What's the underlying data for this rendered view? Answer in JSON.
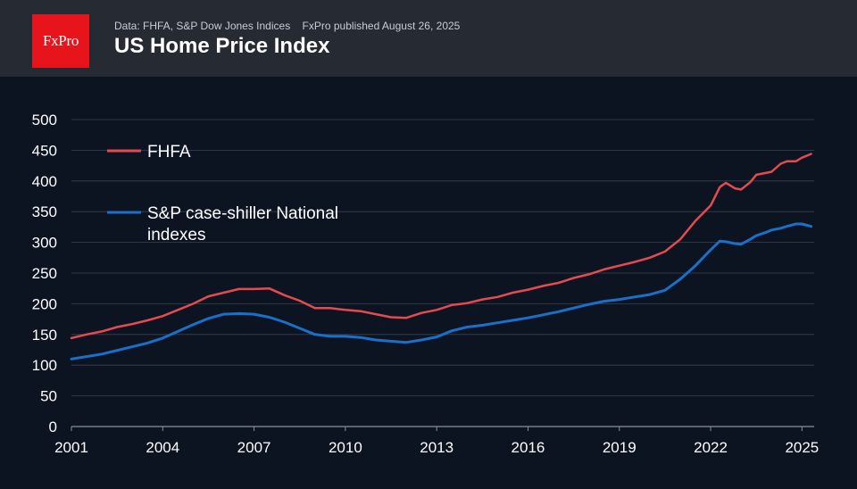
{
  "header": {
    "logo_text": "FxPro",
    "source": "Data: FHFA, S&P Dow Jones Indices",
    "published": "FxPro published August 26, 2025",
    "title": "US Home Price Index"
  },
  "colors": {
    "background": "#0c1421",
    "header": "#262a33",
    "logo": "#e8141c",
    "fhfa": "#e54a50",
    "sp": "#1a6fc9",
    "grid": "#3a4150"
  },
  "chart_data": {
    "type": "line",
    "title": "US Home Price Index",
    "xlabel": "",
    "ylabel": "",
    "xlim": [
      2001,
      2025.4
    ],
    "ylim": [
      0,
      500
    ],
    "y_ticks": [
      0,
      50,
      100,
      150,
      200,
      250,
      300,
      350,
      400,
      450,
      500
    ],
    "x_ticks": [
      2001,
      2004,
      2007,
      2010,
      2013,
      2016,
      2019,
      2022,
      2025
    ],
    "grid": true,
    "legend_position": "top-left",
    "series": [
      {
        "name": "FHFA",
        "color": "#e54a50",
        "points": [
          [
            2001.0,
            144
          ],
          [
            2001.5,
            150
          ],
          [
            2002.0,
            155
          ],
          [
            2002.5,
            162
          ],
          [
            2003.0,
            167
          ],
          [
            2003.5,
            173
          ],
          [
            2004.0,
            180
          ],
          [
            2004.5,
            190
          ],
          [
            2005.0,
            200
          ],
          [
            2005.5,
            212
          ],
          [
            2006.0,
            218
          ],
          [
            2006.5,
            224
          ],
          [
            2007.0,
            224
          ],
          [
            2007.5,
            225
          ],
          [
            2008.0,
            214
          ],
          [
            2008.5,
            205
          ],
          [
            2009.0,
            193
          ],
          [
            2009.5,
            193
          ],
          [
            2010.0,
            190
          ],
          [
            2010.5,
            188
          ],
          [
            2011.0,
            183
          ],
          [
            2011.5,
            178
          ],
          [
            2012.0,
            177
          ],
          [
            2012.5,
            185
          ],
          [
            2013.0,
            190
          ],
          [
            2013.5,
            198
          ],
          [
            2014.0,
            201
          ],
          [
            2014.5,
            207
          ],
          [
            2015.0,
            211
          ],
          [
            2015.5,
            218
          ],
          [
            2016.0,
            223
          ],
          [
            2016.5,
            229
          ],
          [
            2017.0,
            234
          ],
          [
            2017.5,
            242
          ],
          [
            2018.0,
            248
          ],
          [
            2018.5,
            256
          ],
          [
            2019.0,
            262
          ],
          [
            2019.5,
            268
          ],
          [
            2020.0,
            275
          ],
          [
            2020.5,
            285
          ],
          [
            2021.0,
            305
          ],
          [
            2021.5,
            335
          ],
          [
            2022.0,
            360
          ],
          [
            2022.3,
            390
          ],
          [
            2022.5,
            397
          ],
          [
            2022.8,
            388
          ],
          [
            2023.0,
            386
          ],
          [
            2023.3,
            398
          ],
          [
            2023.5,
            410
          ],
          [
            2023.8,
            413
          ],
          [
            2024.0,
            415
          ],
          [
            2024.3,
            428
          ],
          [
            2024.5,
            432
          ],
          [
            2024.8,
            432
          ],
          [
            2025.0,
            438
          ],
          [
            2025.3,
            444
          ]
        ]
      },
      {
        "name": "S&P case-shiller National indexes",
        "color": "#1a6fc9",
        "points": [
          [
            2001.0,
            110
          ],
          [
            2001.5,
            114
          ],
          [
            2002.0,
            118
          ],
          [
            2002.5,
            124
          ],
          [
            2003.0,
            130
          ],
          [
            2003.5,
            136
          ],
          [
            2004.0,
            144
          ],
          [
            2004.5,
            155
          ],
          [
            2005.0,
            166
          ],
          [
            2005.5,
            176
          ],
          [
            2006.0,
            183
          ],
          [
            2006.5,
            184
          ],
          [
            2007.0,
            183
          ],
          [
            2007.5,
            178
          ],
          [
            2008.0,
            170
          ],
          [
            2008.5,
            160
          ],
          [
            2009.0,
            150
          ],
          [
            2009.5,
            147
          ],
          [
            2010.0,
            147
          ],
          [
            2010.5,
            145
          ],
          [
            2011.0,
            141
          ],
          [
            2011.5,
            139
          ],
          [
            2012.0,
            137
          ],
          [
            2012.5,
            141
          ],
          [
            2013.0,
            146
          ],
          [
            2013.5,
            156
          ],
          [
            2014.0,
            162
          ],
          [
            2014.5,
            165
          ],
          [
            2015.0,
            169
          ],
          [
            2015.5,
            173
          ],
          [
            2016.0,
            177
          ],
          [
            2016.5,
            182
          ],
          [
            2017.0,
            187
          ],
          [
            2017.5,
            193
          ],
          [
            2018.0,
            199
          ],
          [
            2018.5,
            204
          ],
          [
            2019.0,
            207
          ],
          [
            2019.5,
            211
          ],
          [
            2020.0,
            215
          ],
          [
            2020.5,
            222
          ],
          [
            2021.0,
            240
          ],
          [
            2021.5,
            262
          ],
          [
            2022.0,
            288
          ],
          [
            2022.3,
            302
          ],
          [
            2022.5,
            301
          ],
          [
            2022.8,
            298
          ],
          [
            2023.0,
            297
          ],
          [
            2023.3,
            305
          ],
          [
            2023.5,
            311
          ],
          [
            2023.8,
            316
          ],
          [
            2024.0,
            320
          ],
          [
            2024.3,
            323
          ],
          [
            2024.5,
            326
          ],
          [
            2024.8,
            330
          ],
          [
            2025.0,
            330
          ],
          [
            2025.3,
            326
          ]
        ]
      }
    ]
  }
}
